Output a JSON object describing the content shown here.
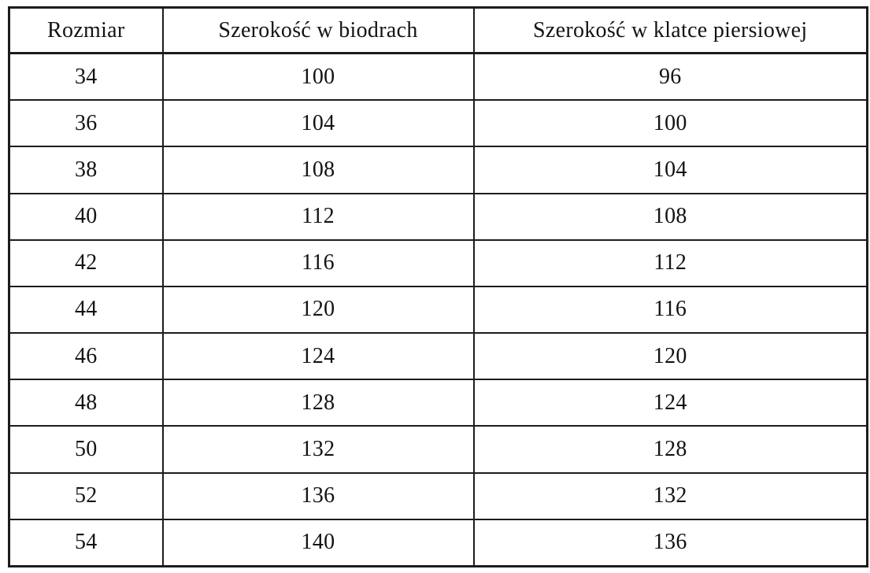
{
  "table": {
    "columns": [
      "Rozmiar",
      "Szerokość w biodrach",
      "Szerokość w klatce piersiowej"
    ],
    "rows": [
      [
        "34",
        "100",
        "96"
      ],
      [
        "36",
        "104",
        "100"
      ],
      [
        "38",
        "108",
        "104"
      ],
      [
        "40",
        "112",
        "108"
      ],
      [
        "42",
        "116",
        "112"
      ],
      [
        "44",
        "120",
        "116"
      ],
      [
        "46",
        "124",
        "120"
      ],
      [
        "48",
        "128",
        "124"
      ],
      [
        "50",
        "132",
        "128"
      ],
      [
        "52",
        "136",
        "132"
      ],
      [
        "54",
        "140",
        "136"
      ]
    ],
    "border_color": "#1c1c1c",
    "text_color": "#131313",
    "background_color": "#ffffff"
  },
  "chart_data": {
    "type": "table",
    "title": "",
    "columns": [
      "Rozmiar",
      "Szerokość w biodrach",
      "Szerokość w klatce piersiowej"
    ],
    "rows": [
      [
        34,
        100,
        96
      ],
      [
        36,
        104,
        100
      ],
      [
        38,
        108,
        104
      ],
      [
        40,
        112,
        108
      ],
      [
        42,
        116,
        112
      ],
      [
        44,
        120,
        116
      ],
      [
        46,
        124,
        120
      ],
      [
        48,
        128,
        124
      ],
      [
        50,
        132,
        128
      ],
      [
        52,
        136,
        132
      ],
      [
        54,
        140,
        136
      ]
    ]
  }
}
